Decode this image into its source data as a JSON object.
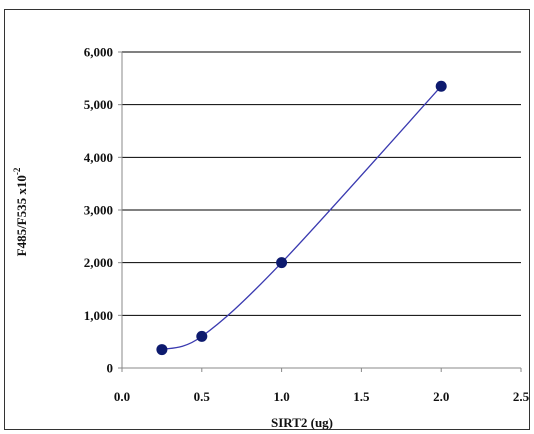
{
  "chart_data": {
    "type": "scatter",
    "title": "",
    "xlabel": "SIRT2 (ug)",
    "ylabel_parts": {
      "base": "F485/F535 x10",
      "exponent": "-2"
    },
    "xlim": [
      0,
      2.5
    ],
    "ylim": [
      0,
      6000
    ],
    "x_ticks": [
      "0.0",
      "0.5",
      "1.0",
      "1.5",
      "2.0",
      "2.5"
    ],
    "y_ticks": [
      "0",
      "1,000",
      "2,000",
      "3,000",
      "4,000",
      "5,000",
      "6,000"
    ],
    "x_tick_values": [
      0,
      0.5,
      1.0,
      1.5,
      2.0,
      2.5
    ],
    "y_tick_values": [
      0,
      1000,
      2000,
      3000,
      4000,
      5000,
      6000
    ],
    "grid": "horizontal",
    "series": [
      {
        "x": [
          0.25,
          0.5,
          1.0,
          2.0
        ],
        "y": [
          350,
          600,
          2000,
          5350
        ],
        "smoothed_line": true
      }
    ],
    "colors": {
      "marker": "#0d1a6e",
      "line": "#3a3ab0",
      "grid": "#000000",
      "axis": "#888888"
    }
  }
}
